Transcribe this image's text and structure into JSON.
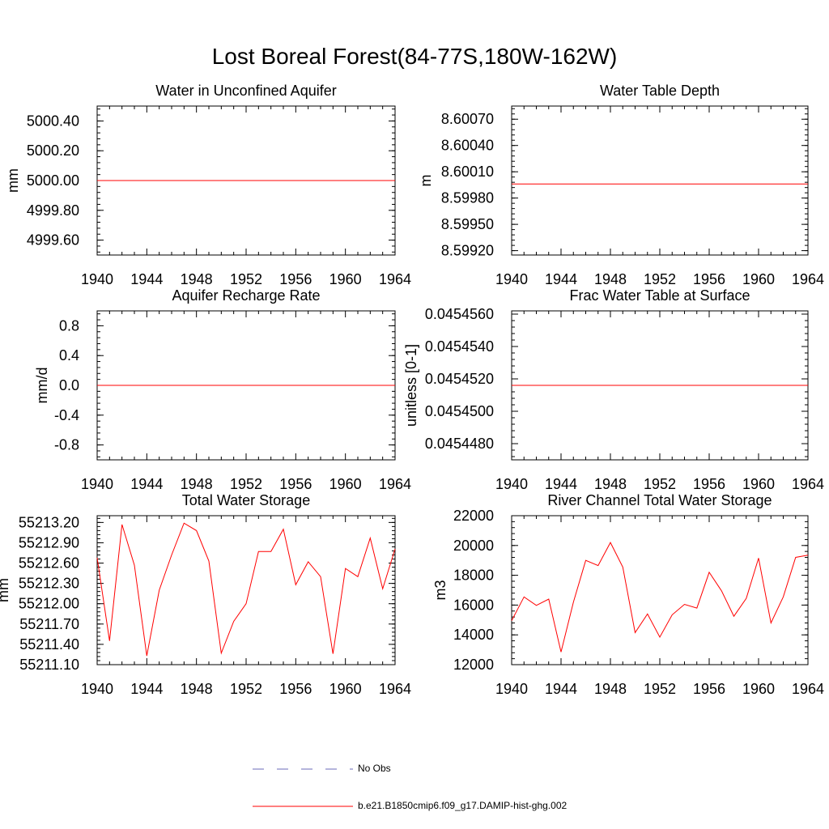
{
  "title": "Lost Boreal Forest(84-77S,180W-162W)",
  "colors": {
    "model_line": "#ff0000",
    "obs_line": "#6b6bb8",
    "axis": "#000000"
  },
  "legend": {
    "items": [
      {
        "label": "No Obs",
        "style": "dashed",
        "color": "#6b6bb8"
      },
      {
        "label": "b.e21.B1850cmip6.f09_g17.DAMIP-hist-ghg.002",
        "style": "solid",
        "color": "#ff0000"
      }
    ]
  },
  "chart_data": [
    {
      "type": "line",
      "title": "Water in Unconfined Aquifer",
      "ylabel": "mm",
      "xlim": [
        1940,
        1964
      ],
      "ylim": [
        4999.5,
        5000.5
      ],
      "xticks": [
        "1940",
        "1944",
        "1948",
        "1952",
        "1956",
        "1960",
        "1964"
      ],
      "yticks": [
        {
          "v": 5000.4,
          "label": "5000.40"
        },
        {
          "v": 5000.2,
          "label": "5000.20"
        },
        {
          "v": 5000.0,
          "label": "5000.00"
        },
        {
          "v": 4999.8,
          "label": "4999.80"
        },
        {
          "v": 4999.6,
          "label": "4999.60"
        }
      ],
      "minor_step": 0.04,
      "series": [
        {
          "x": [
            1940,
            1964
          ],
          "values": [
            5000.0,
            5000.0
          ]
        }
      ]
    },
    {
      "type": "line",
      "title": "Water Table Depth",
      "ylabel": "m",
      "xlim": [
        1940,
        1964
      ],
      "ylim": [
        8.59915,
        8.60085
      ],
      "xticks": [
        "1940",
        "1944",
        "1948",
        "1952",
        "1956",
        "1960",
        "1964"
      ],
      "yticks": [
        {
          "v": 8.6007,
          "label": "8.60070"
        },
        {
          "v": 8.6004,
          "label": "8.60040"
        },
        {
          "v": 8.6001,
          "label": "8.60010"
        },
        {
          "v": 8.5998,
          "label": "8.59980"
        },
        {
          "v": 8.5995,
          "label": "8.59950"
        },
        {
          "v": 8.5992,
          "label": "8.59920"
        }
      ],
      "minor_step": 6e-05,
      "series": [
        {
          "x": [
            1940,
            1964
          ],
          "values": [
            8.59996,
            8.59996
          ]
        }
      ]
    },
    {
      "type": "line",
      "title": "Aquifer Recharge Rate",
      "ylabel": "mm/d",
      "xlim": [
        1940,
        1964
      ],
      "ylim": [
        -1.0,
        1.0
      ],
      "xticks": [
        "1940",
        "1944",
        "1948",
        "1952",
        "1956",
        "1960",
        "1964"
      ],
      "yticks": [
        {
          "v": 0.8,
          "label": "0.8"
        },
        {
          "v": 0.4,
          "label": "0.4"
        },
        {
          "v": 0.0,
          "label": "0.0"
        },
        {
          "v": -0.4,
          "label": "-0.4"
        },
        {
          "v": -0.8,
          "label": "-0.8"
        }
      ],
      "minor_step": 0.08,
      "series": [
        {
          "x": [
            1940,
            1964
          ],
          "values": [
            0.0,
            0.0
          ]
        }
      ]
    },
    {
      "type": "line",
      "title": "Frac Water Table at Surface",
      "ylabel": "unitless [0-1]",
      "xlim": [
        1940,
        1964
      ],
      "ylim": [
        0.045447,
        0.0454562
      ],
      "xticks": [
        "1940",
        "1944",
        "1948",
        "1952",
        "1956",
        "1960",
        "1964"
      ],
      "yticks": [
        {
          "v": 0.045456,
          "label": "0.0454560"
        },
        {
          "v": 0.045454,
          "label": "0.0454540"
        },
        {
          "v": 0.045452,
          "label": "0.0454520"
        },
        {
          "v": 0.04545,
          "label": "0.0454500"
        },
        {
          "v": 0.045448,
          "label": "0.0454480"
        }
      ],
      "minor_step": 4e-07,
      "series": [
        {
          "x": [
            1940,
            1964
          ],
          "values": [
            0.0454516,
            0.0454516
          ]
        }
      ]
    },
    {
      "type": "line",
      "title": "Total Water Storage",
      "ylabel": "mm",
      "xlim": [
        1940,
        1964
      ],
      "ylim": [
        55211.1,
        55213.3
      ],
      "xticks": [
        "1940",
        "1944",
        "1948",
        "1952",
        "1956",
        "1960",
        "1964"
      ],
      "yticks": [
        {
          "v": 55213.2,
          "label": "55213.20"
        },
        {
          "v": 55212.9,
          "label": "55212.90"
        },
        {
          "v": 55212.6,
          "label": "55212.60"
        },
        {
          "v": 55212.3,
          "label": "55212.30"
        },
        {
          "v": 55212.0,
          "label": "55212.00"
        },
        {
          "v": 55211.7,
          "label": "55211.70"
        },
        {
          "v": 55211.4,
          "label": "55211.40"
        },
        {
          "v": 55211.1,
          "label": "55211.10"
        }
      ],
      "minor_step": 0.06,
      "series": [
        {
          "x": [
            1940,
            1941,
            1942,
            1943,
            1944,
            1945,
            1946,
            1947,
            1948,
            1949,
            1950,
            1951,
            1952,
            1953,
            1954,
            1955,
            1956,
            1957,
            1958,
            1959,
            1960,
            1961,
            1962,
            1963,
            1964
          ],
          "values": [
            55212.68,
            55211.45,
            55213.17,
            55212.57,
            55211.23,
            55212.2,
            55212.72,
            55213.19,
            55213.08,
            55212.63,
            55211.27,
            55211.74,
            55212.0,
            55212.77,
            55212.77,
            55213.1,
            55212.28,
            55212.62,
            55212.4,
            55211.26,
            55212.52,
            55212.4,
            55212.97,
            55212.22,
            55212.81
          ]
        }
      ]
    },
    {
      "type": "line",
      "title": "River Channel Total Water Storage",
      "ylabel": "m3",
      "xlim": [
        1940,
        1964
      ],
      "ylim": [
        12000,
        22000
      ],
      "xticks": [
        "1940",
        "1944",
        "1948",
        "1952",
        "1956",
        "1960",
        "1964"
      ],
      "yticks": [
        {
          "v": 22000,
          "label": "22000"
        },
        {
          "v": 20000,
          "label": "20000"
        },
        {
          "v": 18000,
          "label": "18000"
        },
        {
          "v": 16000,
          "label": "16000"
        },
        {
          "v": 14000,
          "label": "14000"
        },
        {
          "v": 12000,
          "label": "12000"
        }
      ],
      "minor_step": 400,
      "series": [
        {
          "x": [
            1940,
            1941,
            1942,
            1943,
            1944,
            1945,
            1946,
            1947,
            1948,
            1949,
            1950,
            1951,
            1952,
            1953,
            1954,
            1955,
            1956,
            1957,
            1958,
            1959,
            1960,
            1961,
            1962,
            1963,
            1964
          ],
          "values": [
            14950,
            16550,
            15980,
            16400,
            12850,
            16200,
            19000,
            18650,
            20200,
            18550,
            14150,
            15400,
            13850,
            15350,
            16050,
            15800,
            18200,
            16950,
            15250,
            16450,
            19150,
            14800,
            16550,
            19200,
            19350
          ]
        }
      ]
    }
  ]
}
